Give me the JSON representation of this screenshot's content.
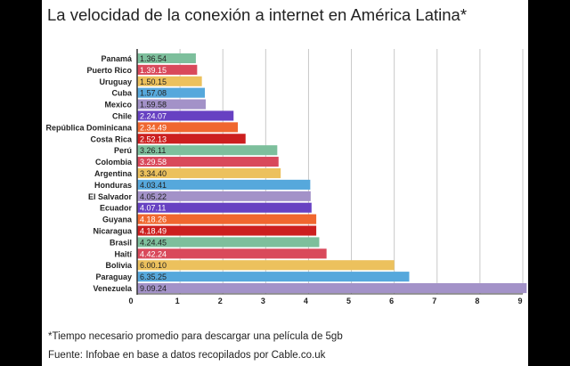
{
  "title": "La velocidad de la conexión a internet en América Latina*",
  "footnote": "*Tiempo necesario promedio para descargar una película de 5gb",
  "source": "Fuente: Infobae en base a datos recopilados por Cable.co.uk",
  "chart_data": {
    "type": "bar",
    "orientation": "horizontal",
    "title": "La velocidad de la conexión a internet en América Latina*",
    "xlabel": "",
    "ylabel": "",
    "xlim": [
      0,
      9
    ],
    "x_ticks": [
      0,
      1,
      2,
      3,
      4,
      5,
      6,
      7,
      8,
      9
    ],
    "grid": "vertical",
    "legend": "none",
    "categories": [
      "Panamá",
      "Puerto Rico",
      "Uruguay",
      "Cuba",
      "Mexico",
      "Chile",
      "República Dominicana",
      "Costa Rica",
      "Perú",
      "Colombia",
      "Argentina",
      "Honduras",
      "El Salvador",
      "Ecuador",
      "Guyana",
      "Nicaragua",
      "Brasil",
      "Haití",
      "Bolivia",
      "Paraguay",
      "Venezuela"
    ],
    "values": [
      1.37,
      1.4,
      1.51,
      1.58,
      1.6,
      2.25,
      2.35,
      2.53,
      3.27,
      3.3,
      3.35,
      4.04,
      4.05,
      4.07,
      4.18,
      4.18,
      4.25,
      4.42,
      6.0,
      6.35,
      9.09
    ],
    "value_labels": [
      "1.36.54",
      "1.39.15",
      "1.50.15",
      "1.57.08",
      "1.59.58",
      "2.24.07",
      "2.34.49",
      "2.52.13",
      "3.26.11",
      "3.29.58",
      "3.34.40",
      "4.03.41",
      "4.05.22",
      "4.07.11",
      "4.18.26",
      "4.18.49",
      "4.24.45",
      "4.42.24",
      "6.00.10",
      "6.35.25",
      "9.09.24"
    ],
    "colors": [
      "#7dbf9c",
      "#d9495b",
      "#ecc15d",
      "#56a8dc",
      "#a392c8",
      "#6741c2",
      "#f0672f",
      "#cc1f1f",
      "#7dbf9c",
      "#d9495b",
      "#ecc15d",
      "#56a8dc",
      "#a392c8",
      "#6741c2",
      "#f0672f",
      "#cc1f1f",
      "#7dbf9c",
      "#d9495b",
      "#ecc15d",
      "#56a8dc",
      "#a392c8"
    ],
    "label_text_colors": [
      "#222222",
      "#ffffff",
      "#222222",
      "#222222",
      "#222222",
      "#ffffff",
      "#ffffff",
      "#ffffff",
      "#222222",
      "#ffffff",
      "#222222",
      "#222222",
      "#222222",
      "#ffffff",
      "#ffffff",
      "#ffffff",
      "#222222",
      "#ffffff",
      "#222222",
      "#222222",
      "#222222"
    ]
  }
}
